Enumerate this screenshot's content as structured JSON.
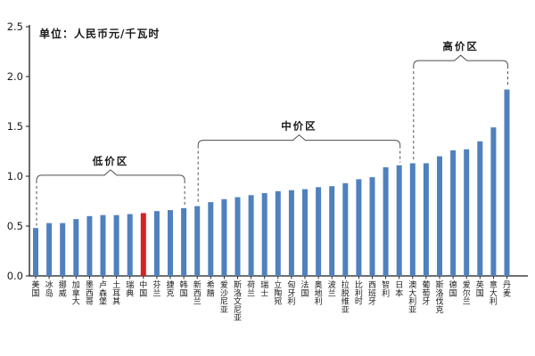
{
  "chart_data": {
    "type": "bar",
    "title": "",
    "unit_label": "单位：人民币元/千瓦时",
    "xlabel": "",
    "ylabel": "",
    "ylim": [
      0,
      2.5
    ],
    "yticks": [
      0.0,
      0.5,
      1.0,
      1.5,
      2.0,
      2.5
    ],
    "ytick_labels": [
      "0.0",
      "0.5",
      "1.0",
      "1.5",
      "2.0",
      "2.5"
    ],
    "grid": false,
    "legend": "none",
    "bar_color": "#4f81bd",
    "highlight": {
      "category": "中国",
      "index": 8,
      "color": "#d92121"
    },
    "axis_color": "#1a1a1a",
    "bracket_color": "#4d4d4d",
    "categories": [
      "美国",
      "冰岛",
      "挪威",
      "加拿大",
      "墨西哥",
      "卢森堡",
      "土耳其",
      "瑞典",
      "中国",
      "芬兰",
      "捷克",
      "韩国",
      "新西兰",
      "希腊",
      "爱沙尼亚",
      "斯洛文尼亚",
      "荷兰",
      "瑞士",
      "立陶宛",
      "匈牙利",
      "法国",
      "奥地利",
      "波兰",
      "拉脱维亚",
      "比利时",
      "西班牙",
      "智利",
      "日本",
      "澳大利亚",
      "葡萄牙",
      "斯洛伐克",
      "德国",
      "爱尔兰",
      "英国",
      "意大利",
      "丹麦"
    ],
    "values": [
      0.48,
      0.53,
      0.53,
      0.57,
      0.6,
      0.61,
      0.61,
      0.62,
      0.63,
      0.65,
      0.66,
      0.68,
      0.7,
      0.74,
      0.77,
      0.79,
      0.81,
      0.83,
      0.85,
      0.86,
      0.87,
      0.89,
      0.9,
      0.93,
      0.97,
      0.99,
      1.09,
      1.11,
      1.13,
      1.13,
      1.2,
      1.26,
      1.27,
      1.35,
      1.49,
      1.87
    ],
    "zones": [
      {
        "label": "低价区",
        "start_category": "美国",
        "end_category": "韩国",
        "start_index": 0,
        "end_index": 11,
        "bracket_value": 1.01
      },
      {
        "label": "中价区",
        "start_category": "新西兰",
        "end_category": "日本",
        "start_index": 12,
        "end_index": 27,
        "bracket_value": 1.36
      },
      {
        "label": "高价区",
        "start_category": "澳大利亚",
        "end_category": "丹麦",
        "start_index": 28,
        "end_index": 35,
        "bracket_value": 2.16
      }
    ]
  }
}
